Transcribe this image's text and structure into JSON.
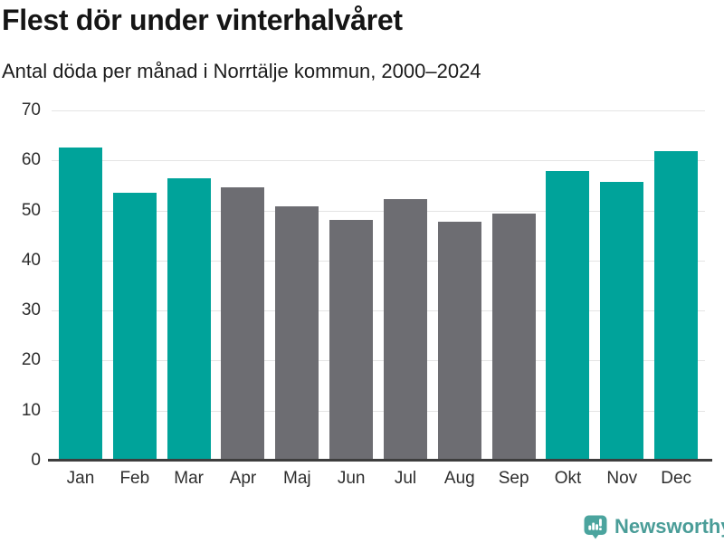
{
  "chart_data": {
    "type": "bar",
    "title": "Flest dör under vinterhalvåret",
    "subtitle": "Antal döda per månad i Norrtälje kommun, 2000–2024",
    "categories": [
      "Jan",
      "Feb",
      "Mar",
      "Apr",
      "Maj",
      "Jun",
      "Jul",
      "Aug",
      "Sep",
      "Okt",
      "Nov",
      "Dec"
    ],
    "values": [
      62.6,
      53.5,
      56.4,
      54.7,
      50.8,
      48.1,
      52.2,
      47.8,
      49.4,
      57.8,
      55.8,
      61.9
    ],
    "bar_colors": [
      "teal",
      "teal",
      "teal",
      "gray",
      "gray",
      "gray",
      "gray",
      "gray",
      "gray",
      "teal",
      "teal",
      "teal"
    ],
    "palette": {
      "teal": "#00a39a",
      "gray": "#6d6d72"
    },
    "xlabel": "",
    "ylabel": "",
    "ylim": [
      0,
      70
    ],
    "y_ticks": [
      0,
      10,
      20,
      30,
      40,
      50,
      60,
      70
    ],
    "grid": "horizontal",
    "legend": "none"
  },
  "footer": {
    "brand": "Newsworthy"
  },
  "colors": {
    "accent_teal": "#00a39a",
    "bar_gray": "#6d6d72",
    "logo_teal": "#4ba49e",
    "gridline": "#e4e4e4",
    "axis_line": "#3d3d3d"
  }
}
